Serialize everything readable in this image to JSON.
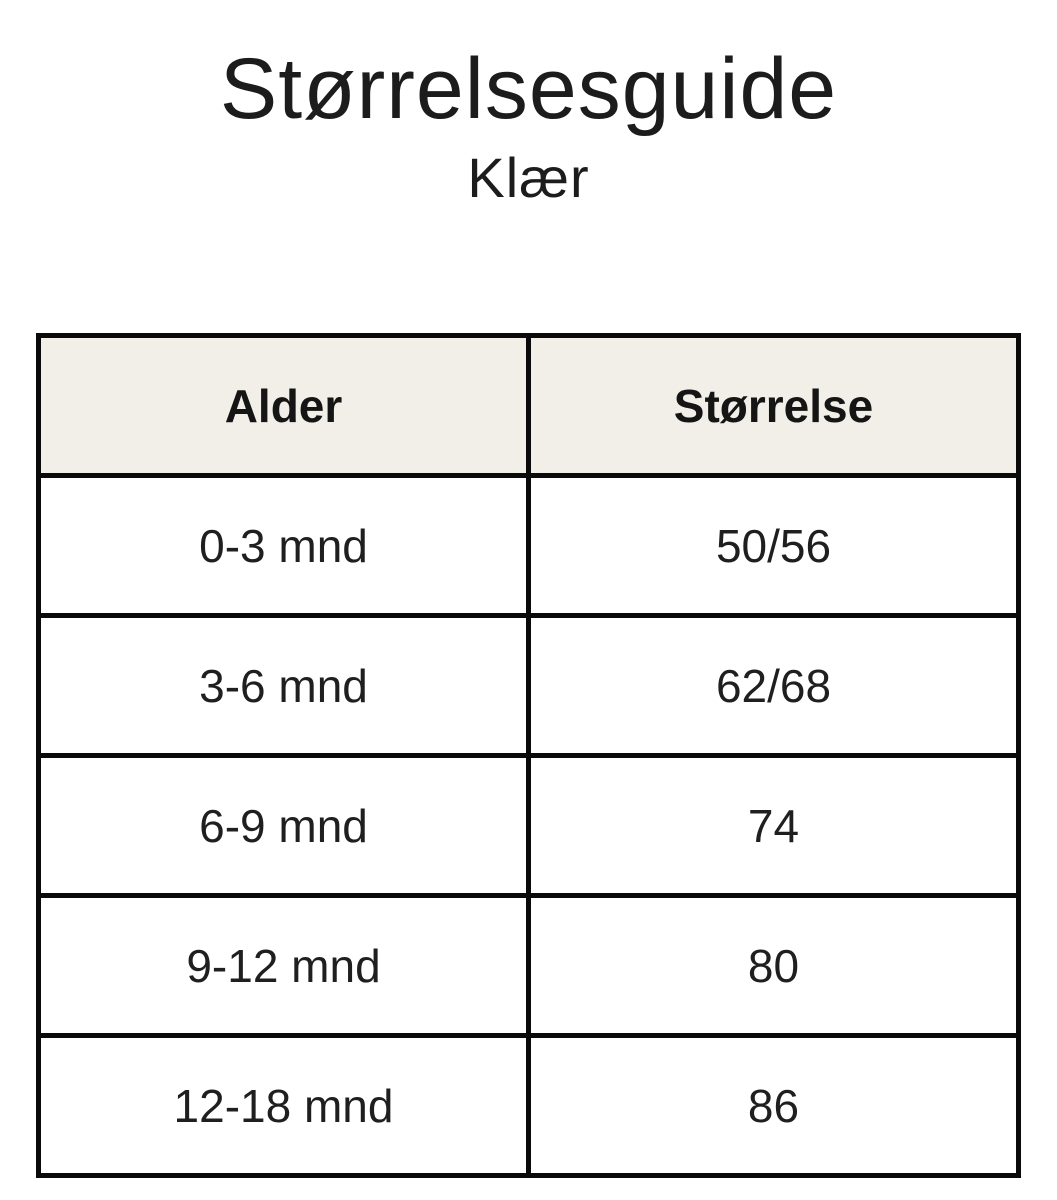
{
  "page": {
    "title": "Størrelsesguide",
    "subtitle": "Klær",
    "background_color": "#ffffff",
    "text_color": "#1c1c1c"
  },
  "table": {
    "header_background": "#f2efe8",
    "border_color": "#0a0a0a",
    "columns": [
      "Alder",
      "Størrelse"
    ],
    "rows": [
      {
        "age": "0-3 mnd",
        "size": "50/56"
      },
      {
        "age": "3-6 mnd",
        "size": "62/68"
      },
      {
        "age": "6-9 mnd",
        "size": "74"
      },
      {
        "age": "9-12 mnd",
        "size": "80"
      },
      {
        "age": "12-18 mnd",
        "size": "86"
      }
    ]
  },
  "chart_data": {
    "type": "table",
    "title": "Størrelsesguide",
    "subtitle": "Klær",
    "columns": [
      "Alder",
      "Størrelse"
    ],
    "rows": [
      [
        "0-3 mnd",
        "50/56"
      ],
      [
        "3-6 mnd",
        "62/68"
      ],
      [
        "6-9 mnd",
        "74"
      ],
      [
        "9-12 mnd",
        "80"
      ],
      [
        "12-18 mnd",
        "86"
      ]
    ]
  }
}
